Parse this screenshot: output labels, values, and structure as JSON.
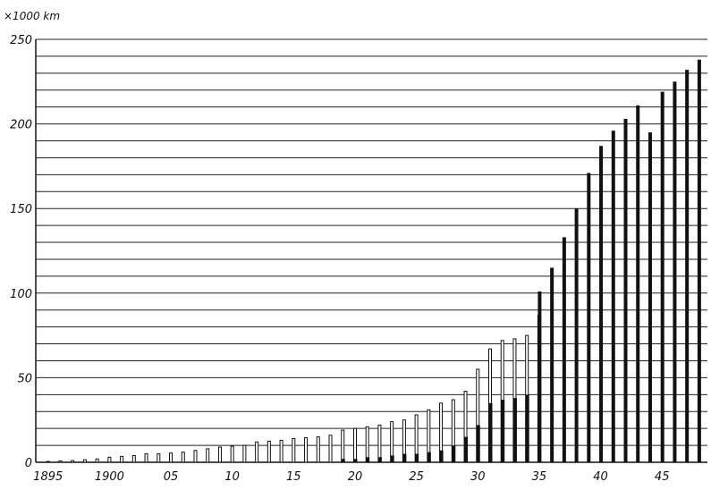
{
  "chart_data": {
    "type": "bar",
    "title": "",
    "ylabel": "×1000 km",
    "xlabel": "",
    "ylim": [
      0,
      250
    ],
    "yticks": [
      0,
      50,
      100,
      150,
      200,
      250
    ],
    "ytick_labels": [
      "0",
      "50",
      "100",
      "150",
      "200",
      "250"
    ],
    "xlim": [
      1894,
      1948.7
    ],
    "xticks": [
      1895,
      1900,
      1905,
      1910,
      1915,
      1920,
      1925,
      1930,
      1935,
      1940,
      1945
    ],
    "xtick_labels": [
      "1895",
      "1900",
      "05",
      "10",
      "15",
      "20",
      "25",
      "30",
      "35",
      "40",
      "45"
    ],
    "grid": true,
    "legend": "none",
    "categories": [
      1895,
      1896,
      1897,
      1898,
      1899,
      1900,
      1901,
      1902,
      1903,
      1904,
      1905,
      1906,
      1907,
      1908,
      1909,
      1910,
      1911,
      1912,
      1913,
      1914,
      1915,
      1916,
      1917,
      1918,
      1919,
      1920,
      1921,
      1922,
      1923,
      1924,
      1925,
      1926,
      1927,
      1928,
      1929,
      1930,
      1931,
      1932,
      1933,
      1934,
      1935,
      1936,
      1937,
      1938,
      1939,
      1940,
      1941,
      1942,
      1943,
      1944,
      1945,
      1946,
      1947,
      1948
    ],
    "series": [
      {
        "values": [
          0,
          0,
          0,
          0,
          0,
          0,
          0,
          0,
          0,
          0,
          0,
          0,
          0,
          0,
          0,
          0,
          0,
          0,
          0,
          0,
          0,
          0,
          0,
          0,
          2,
          2,
          3,
          3,
          4,
          5,
          5,
          6,
          7,
          10,
          15,
          22,
          35,
          37,
          38,
          40,
          101,
          115,
          133,
          150,
          171,
          187,
          196,
          203,
          211,
          195,
          219,
          225,
          232,
          238
        ]
      },
      {
        "values": [
          0.5,
          0.8,
          1,
          1.5,
          2,
          3,
          3.5,
          4,
          5,
          5,
          5.5,
          6,
          7,
          8,
          9,
          9.5,
          10,
          12,
          12.5,
          13,
          14,
          14.5,
          15,
          16,
          19,
          20,
          21,
          22,
          24,
          25,
          28,
          31,
          35,
          37,
          42,
          55,
          67,
          72,
          73,
          75,
          87,
          0,
          0,
          0,
          0,
          0,
          0,
          0,
          0,
          0,
          0,
          0,
          0,
          0
        ]
      }
    ],
    "colors": {
      "dark": "#111111",
      "light": "#ffffff",
      "grid": "#222222"
    }
  }
}
